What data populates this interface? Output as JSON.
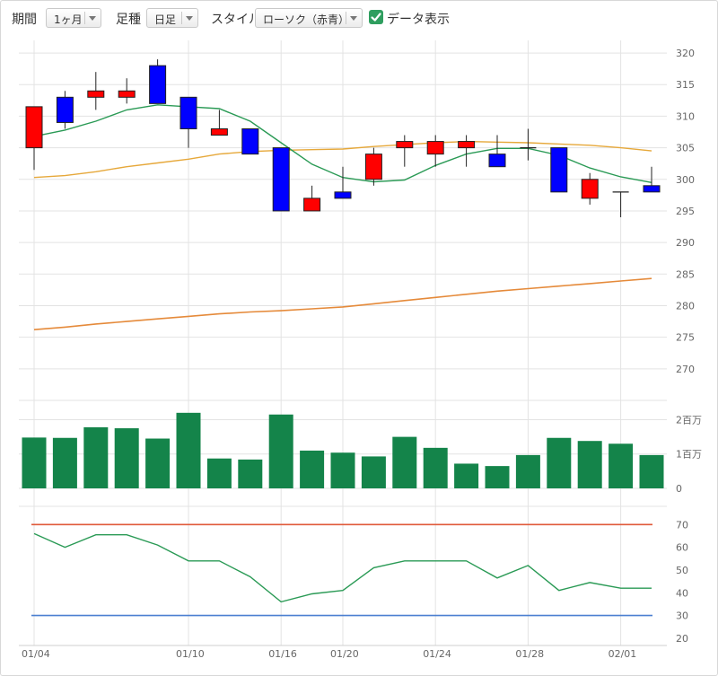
{
  "toolbar": {
    "period_label": "期間",
    "period_value": "1ヶ月",
    "bar_label": "足種",
    "bar_value": "日足",
    "style_label": "スタイル",
    "style_value": "ローソク（赤青）",
    "data_display_label": "データ表示",
    "data_display_checked": true
  },
  "colors": {
    "up": "#ff0000",
    "down": "#0000ff",
    "ma_short": "#2a9a55",
    "ma_medium": "#e6a83a",
    "ma_long": "#e58a3a",
    "volume": "#14844a",
    "rsi": "#2a9a55",
    "upper_band": "#e05a3a",
    "lower_band": "#4a7fd0",
    "grid": "#e3e3e3"
  },
  "chart_data": [
    {
      "type": "candlestick",
      "ylim": [
        265,
        322
      ],
      "y_ticks": [
        "320",
        "315",
        "310",
        "305",
        "300",
        "295",
        "290",
        "285",
        "280",
        "275",
        "270"
      ],
      "x_labels": [
        "01/04",
        "01/10",
        "01/16",
        "01/20",
        "01/24",
        "01/28",
        "02/01"
      ],
      "candles": [
        {
          "o": 305,
          "h": 311.5,
          "l": 301.5,
          "c": 311.5
        },
        {
          "o": 313,
          "h": 314,
          "l": 308,
          "c": 309
        },
        {
          "o": 313,
          "h": 317,
          "l": 311,
          "c": 314
        },
        {
          "o": 313,
          "h": 316,
          "l": 312,
          "c": 314
        },
        {
          "o": 318,
          "h": 319,
          "l": 312,
          "c": 312
        },
        {
          "o": 313,
          "h": 313,
          "l": 305,
          "c": 308
        },
        {
          "o": 307,
          "h": 311,
          "l": 307,
          "c": 308
        },
        {
          "o": 308,
          "h": 308,
          "l": 304,
          "c": 304
        },
        {
          "o": 305,
          "h": 305,
          "l": 295,
          "c": 295
        },
        {
          "o": 295,
          "h": 299,
          "l": 295,
          "c": 297
        },
        {
          "o": 298,
          "h": 302,
          "l": 297,
          "c": 297
        },
        {
          "o": 300,
          "h": 305,
          "l": 299,
          "c": 304
        },
        {
          "o": 305,
          "h": 307,
          "l": 302,
          "c": 306
        },
        {
          "o": 304,
          "h": 307,
          "l": 302,
          "c": 306
        },
        {
          "o": 305,
          "h": 307,
          "l": 302,
          "c": 306
        },
        {
          "o": 304,
          "h": 307,
          "l": 302,
          "c": 302
        },
        {
          "o": 305,
          "h": 308,
          "l": 303,
          "c": 305
        },
        {
          "o": 305,
          "h": 305,
          "l": 298,
          "c": 298
        },
        {
          "o": 297,
          "h": 301,
          "l": 296,
          "c": 300
        },
        {
          "o": 298,
          "h": 298,
          "l": 294,
          "c": 298
        },
        {
          "o": 299,
          "h": 302,
          "l": 298,
          "c": 298
        }
      ],
      "ma_short": [
        306.8,
        307.8,
        309.2,
        311.0,
        311.8,
        311.5,
        311.2,
        309.2,
        305.8,
        302.4,
        300.3,
        299.6,
        299.9,
        302.2,
        304.0,
        304.9,
        304.9,
        303.8,
        301.8,
        300.4,
        299.5
      ],
      "ma_medium": [
        300.3,
        300.6,
        301.2,
        302.0,
        302.6,
        303.2,
        304.0,
        304.4,
        304.6,
        304.7,
        304.8,
        305.2,
        305.5,
        305.8,
        306.0,
        305.9,
        305.8,
        305.6,
        305.4,
        305.0,
        304.5
      ],
      "ma_long": [
        276.2,
        276.6,
        277.1,
        277.5,
        277.9,
        278.3,
        278.7,
        279.0,
        279.2,
        279.5,
        279.8,
        280.3,
        280.8,
        281.3,
        281.8,
        282.3,
        282.7,
        283.1,
        283.5,
        283.9,
        284.3
      ]
    },
    {
      "type": "bar",
      "name": "volume",
      "ylim": [
        0,
        2.3
      ],
      "y_ticks": [
        "2百万",
        "1百万",
        "0"
      ],
      "values": [
        1.48,
        1.47,
        1.78,
        1.75,
        1.45,
        2.2,
        0.87,
        0.84,
        2.15,
        1.1,
        1.04,
        0.93,
        1.5,
        1.18,
        0.72,
        0.65,
        0.97,
        1.47,
        1.38,
        1.3,
        0.97
      ]
    },
    {
      "type": "line",
      "name": "oscillator",
      "ylim": [
        18,
        78
      ],
      "y_ticks": [
        "70",
        "60",
        "50",
        "40",
        "30",
        "20"
      ],
      "upper_line": 70,
      "lower_line": 30,
      "values": [
        66,
        60,
        65.5,
        65.5,
        61,
        54,
        54,
        47,
        36,
        39.5,
        41,
        51,
        54,
        54,
        54,
        46.5,
        52,
        41,
        44.5,
        42,
        42
      ]
    }
  ]
}
